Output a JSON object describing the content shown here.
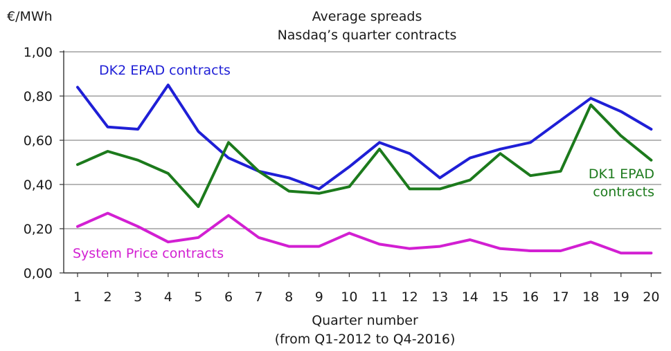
{
  "chart_data": {
    "type": "line",
    "title_lines": [
      "Average spreads",
      "Nasdaq’s quarter contracts"
    ],
    "unit_label": "€/MWh",
    "xlabel_lines": [
      "Quarter number",
      "(from Q1-2012 to Q4-2016)"
    ],
    "x": [
      1,
      2,
      3,
      4,
      5,
      6,
      7,
      8,
      9,
      10,
      11,
      12,
      13,
      14,
      15,
      16,
      17,
      18,
      19,
      20
    ],
    "y_ticks": [
      "1,00",
      "0,80",
      "0,60",
      "0,40",
      "0,20",
      "0,00"
    ],
    "ylim": [
      0,
      1
    ],
    "grid": true,
    "series": [
      {
        "name": "DK2 EPAD contracts",
        "label_lines": [
          "DK2 EPAD contracts"
        ],
        "color": "#1f1fd6",
        "values": [
          0.84,
          0.66,
          0.65,
          0.85,
          0.64,
          0.52,
          0.46,
          0.43,
          0.38,
          0.48,
          0.59,
          0.54,
          0.43,
          0.52,
          0.56,
          0.59,
          0.69,
          0.79,
          0.73,
          0.65
        ]
      },
      {
        "name": "DK1 EPAD contracts",
        "label_lines": [
          "DK1 EPAD",
          "contracts"
        ],
        "color": "#1c7a1c",
        "values": [
          0.49,
          0.55,
          0.51,
          0.45,
          0.3,
          0.59,
          0.46,
          0.37,
          0.36,
          0.39,
          0.56,
          0.38,
          0.38,
          0.42,
          0.54,
          0.44,
          0.46,
          0.76,
          0.62,
          0.51
        ]
      },
      {
        "name": "System Price contracts",
        "label_lines": [
          "System Price contracts"
        ],
        "color": "#d21fd2",
        "values": [
          0.21,
          0.27,
          0.21,
          0.14,
          0.16,
          0.26,
          0.16,
          0.12,
          0.12,
          0.18,
          0.13,
          0.11,
          0.12,
          0.15,
          0.11,
          0.1,
          0.1,
          0.14,
          0.09,
          0.09
        ]
      }
    ]
  }
}
